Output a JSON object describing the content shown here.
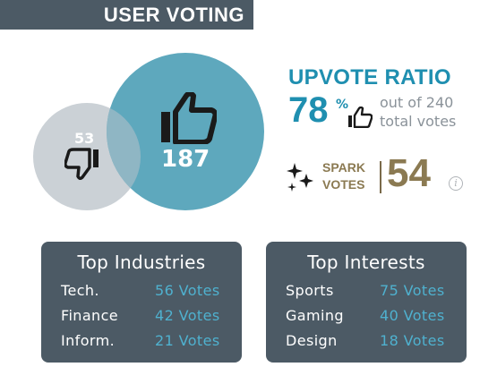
{
  "header": {
    "title": "USER VOTING"
  },
  "venn": {
    "downvotes": "53",
    "upvotes": "187"
  },
  "ratio": {
    "title": "UPVOTE RATIO",
    "percent": "78",
    "percent_symbol": "%",
    "subtitle_line1": "out of 240",
    "subtitle_line2": "total votes"
  },
  "spark": {
    "label_line1": "SPARK",
    "label_line2": "VOTES",
    "count": "54",
    "info_glyph": "i"
  },
  "industries": {
    "title": "Top Industries",
    "rows": [
      {
        "name": "Tech.",
        "votes": "56 Votes"
      },
      {
        "name": "Finance",
        "votes": "42 Votes"
      },
      {
        "name": "Inform.",
        "votes": "21 Votes"
      }
    ]
  },
  "interests": {
    "title": "Top Interests",
    "rows": [
      {
        "name": "Sports",
        "votes": "75 Votes"
      },
      {
        "name": "Gaming",
        "votes": "40 Votes"
      },
      {
        "name": "Design",
        "votes": "18 Votes"
      }
    ]
  },
  "colors": {
    "header_bg": "#4c5a65",
    "upvote_circle": "#5ea8bd",
    "downvote_circle": "#cbd1d6",
    "accent_blue": "#1f8fb0",
    "spark_gold": "#8b7a52"
  }
}
